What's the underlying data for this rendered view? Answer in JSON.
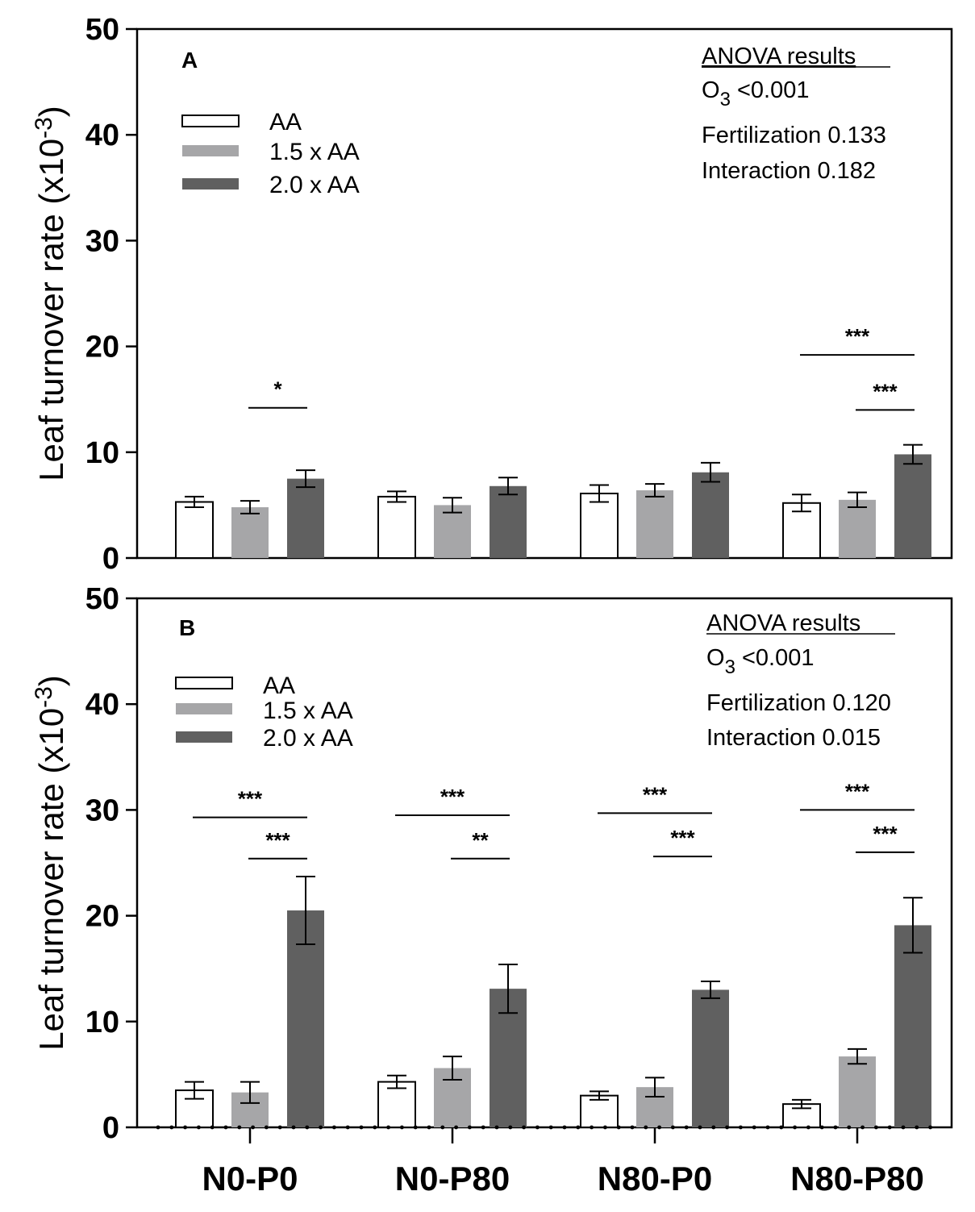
{
  "chart_data": [
    {
      "type": "bar",
      "panel": "A",
      "ylabel": "Leaf turnover rate (x10-3)",
      "ylabel_base": "Leaf turnover rate (x10",
      "ylabel_exp": "-3",
      "ylabel_close": ")",
      "ylim": [
        0,
        50
      ],
      "yticks": [
        "0",
        "10",
        "20",
        "30",
        "40",
        "50"
      ],
      "categories": [
        "N0-P0",
        "N0-P80",
        "N80-P0",
        "N80-P80"
      ],
      "series": [
        {
          "name": "AA",
          "color": "#ffffff",
          "values": [
            5.3,
            5.8,
            6.1,
            5.2
          ],
          "errors": [
            0.5,
            0.5,
            0.8,
            0.8
          ]
        },
        {
          "name": "1.5 x AA",
          "color": "#a6a6a8",
          "values": [
            4.8,
            5.0,
            6.4,
            5.5
          ],
          "errors": [
            0.6,
            0.7,
            0.6,
            0.7
          ]
        },
        {
          "name": "2.0 x AA",
          "color": "#606060",
          "values": [
            7.5,
            6.8,
            8.1,
            9.8
          ],
          "errors": [
            0.8,
            0.8,
            0.9,
            0.9
          ]
        }
      ],
      "significance": [
        {
          "category": 0,
          "from": 1,
          "to": 2,
          "label": "*",
          "y": 14.2
        },
        {
          "category": 3,
          "from": 0,
          "to": 2,
          "label": "***",
          "y": 19.2
        },
        {
          "category": 3,
          "from": 1,
          "to": 2,
          "label": "***",
          "y": 14.0
        }
      ],
      "anova": {
        "title": "ANOVA results",
        "o3_label": "O",
        "o3_sub": "3",
        "o3_value": " <0.001",
        "fertilization": "Fertilization 0.133",
        "interaction": "Interaction 0.182"
      }
    },
    {
      "type": "bar",
      "panel": "B",
      "ylabel": "Leaf turnover rate (x10-3)",
      "ylabel_base": "Leaf turnover rate (x10",
      "ylabel_exp": "-3",
      "ylabel_close": ")",
      "ylim": [
        0,
        50
      ],
      "yticks": [
        "0",
        "10",
        "20",
        "30",
        "40",
        "50"
      ],
      "categories": [
        "N0-P0",
        "N0-P80",
        "N80-P0",
        "N80-P80"
      ],
      "series": [
        {
          "name": "AA",
          "color": "#ffffff",
          "values": [
            3.5,
            4.3,
            3.0,
            2.2
          ],
          "errors": [
            0.8,
            0.6,
            0.4,
            0.4
          ]
        },
        {
          "name": "1.5 x AA",
          "color": "#a6a6a8",
          "values": [
            3.3,
            5.6,
            3.8,
            6.7
          ],
          "errors": [
            1.0,
            1.1,
            0.9,
            0.7
          ]
        },
        {
          "name": "2.0 x AA",
          "color": "#606060",
          "values": [
            20.5,
            13.1,
            13.0,
            19.1
          ],
          "errors": [
            3.2,
            2.3,
            0.8,
            2.6
          ]
        }
      ],
      "significance": [
        {
          "category": 0,
          "from": 0,
          "to": 2,
          "label": "***",
          "y": 29.3
        },
        {
          "category": 0,
          "from": 1,
          "to": 2,
          "label": "***",
          "y": 25.4
        },
        {
          "category": 1,
          "from": 0,
          "to": 2,
          "label": "***",
          "y": 29.5
        },
        {
          "category": 1,
          "from": 1,
          "to": 2,
          "label": "**",
          "y": 25.4
        },
        {
          "category": 2,
          "from": 0,
          "to": 2,
          "label": "***",
          "y": 29.7
        },
        {
          "category": 2,
          "from": 1,
          "to": 2,
          "label": "***",
          "y": 25.6
        },
        {
          "category": 3,
          "from": 0,
          "to": 2,
          "label": "***",
          "y": 30.0
        },
        {
          "category": 3,
          "from": 1,
          "to": 2,
          "label": "***",
          "y": 26.0
        }
      ],
      "anova": {
        "title": "ANOVA results",
        "o3_label": "O",
        "o3_sub": "3",
        "o3_value": " <0.001",
        "fertilization": "Fertilization 0.120",
        "interaction": "Interaction 0.015"
      }
    }
  ]
}
